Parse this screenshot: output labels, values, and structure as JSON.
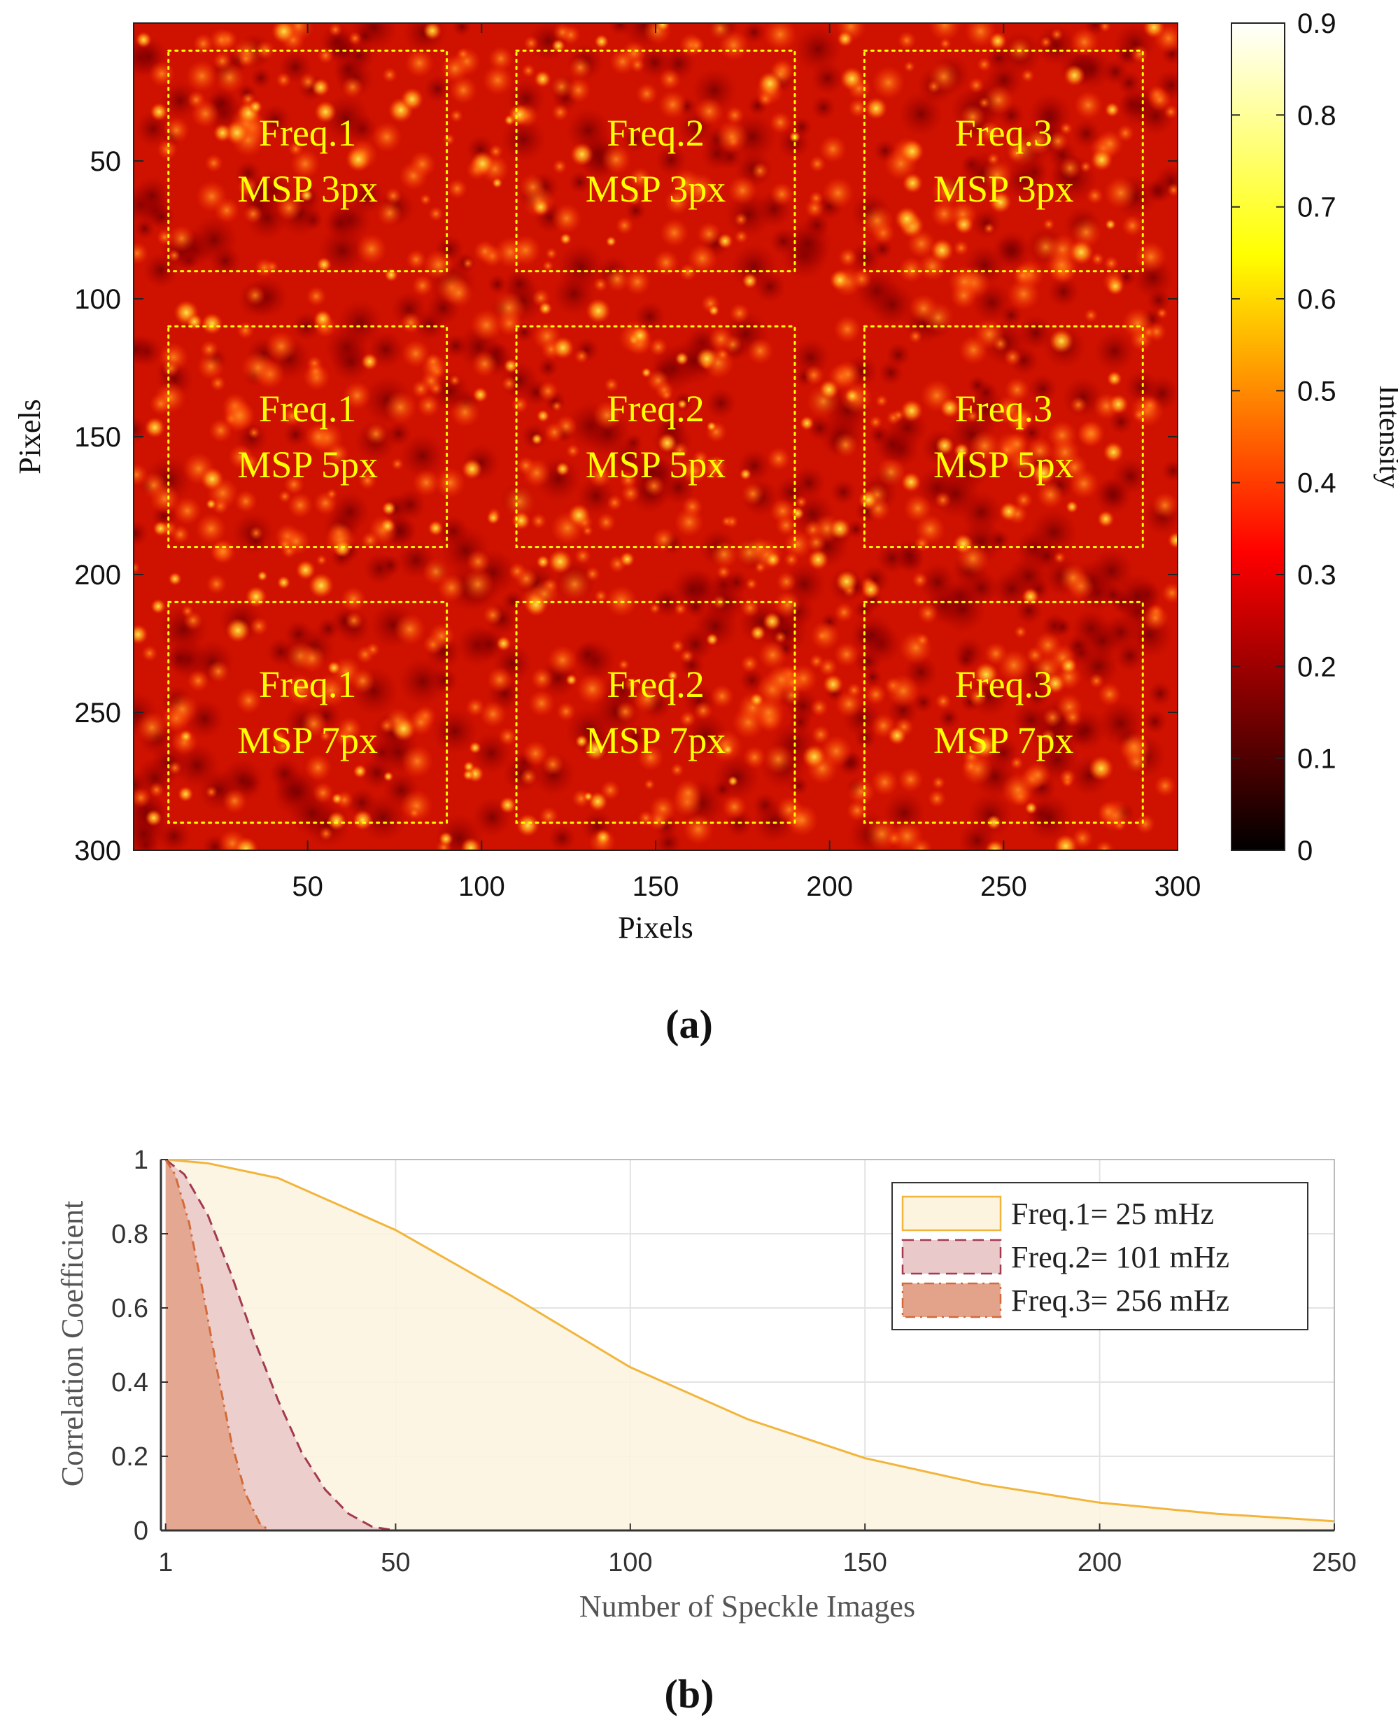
{
  "chart_data": [
    {
      "type": "heatmap",
      "panel_label": "(a)",
      "xlabel": "Pixels",
      "ylabel": "Pixels",
      "xlim": [
        0,
        300
      ],
      "ylim": [
        0,
        300
      ],
      "y_reversed": true,
      "xticks": [
        50,
        100,
        150,
        200,
        250,
        300
      ],
      "yticks": [
        50,
        100,
        150,
        200,
        250,
        300
      ],
      "colorbar": {
        "label": "Intensity",
        "range": [
          0,
          0.9
        ],
        "ticks": [
          "0",
          "0.1",
          "0.2",
          "0.3",
          "0.4",
          "0.5",
          "0.6",
          "0.7",
          "0.8",
          "0.9"
        ],
        "colormap": "hot"
      },
      "regions": [
        {
          "frequency": "Freq.1",
          "msp": "MSP 3px",
          "x_range": [
            10,
            90
          ],
          "y_range": [
            10,
            90
          ]
        },
        {
          "frequency": "Freq.2",
          "msp": "MSP 3px",
          "x_range": [
            110,
            190
          ],
          "y_range": [
            10,
            90
          ]
        },
        {
          "frequency": "Freq.3",
          "msp": "MSP 3px",
          "x_range": [
            210,
            290
          ],
          "y_range": [
            10,
            90
          ]
        },
        {
          "frequency": "Freq.1",
          "msp": "MSP 5px",
          "x_range": [
            10,
            90
          ],
          "y_range": [
            110,
            190
          ]
        },
        {
          "frequency": "Freq.2",
          "msp": "MSP 5px",
          "x_range": [
            110,
            190
          ],
          "y_range": [
            110,
            190
          ]
        },
        {
          "frequency": "Freq.3",
          "msp": "MSP 5px",
          "x_range": [
            210,
            290
          ],
          "y_range": [
            110,
            190
          ]
        },
        {
          "frequency": "Freq.1",
          "msp": "MSP 7px",
          "x_range": [
            10,
            90
          ],
          "y_range": [
            210,
            290
          ]
        },
        {
          "frequency": "Freq.2",
          "msp": "MSP 7px",
          "x_range": [
            110,
            190
          ],
          "y_range": [
            210,
            290
          ]
        },
        {
          "frequency": "Freq.3",
          "msp": "MSP 7px",
          "x_range": [
            210,
            290
          ],
          "y_range": [
            210,
            290
          ]
        }
      ],
      "region_outline_color": "#ffff00",
      "label_color": "#ffff00"
    },
    {
      "type": "area",
      "panel_label": "(b)",
      "xlabel": "Number of Speckle Images",
      "ylabel": "Correlation Coefficient",
      "xlim": [
        0,
        250
      ],
      "ylim": [
        0,
        1
      ],
      "xticks": [
        1,
        50,
        100,
        150,
        200,
        250
      ],
      "yticks": [
        0,
        0.2,
        0.4,
        0.6,
        0.8,
        1
      ],
      "ytick_labels": [
        "0",
        "0.2",
        "0.4",
        "0.6",
        "0.8",
        "1"
      ],
      "grid": true,
      "legend_position": "top-right",
      "series": [
        {
          "name": "Freq.1= 25 mHz",
          "line_style": "solid",
          "line_color": "#f2b53c",
          "fill_color": "#fdf4df",
          "x": [
            1,
            10,
            25,
            50,
            75,
            100,
            125,
            150,
            175,
            200,
            225,
            250
          ],
          "y": [
            1.0,
            0.99,
            0.95,
            0.81,
            0.63,
            0.44,
            0.3,
            0.195,
            0.125,
            0.075,
            0.045,
            0.025
          ]
        },
        {
          "name": "Freq.2= 101 mHz",
          "line_style": "dashed",
          "line_color": "#a33a4e",
          "fill_color": "#e9c9c9",
          "x": [
            1,
            5,
            10,
            15,
            20,
            25,
            30,
            35,
            40,
            45,
            50,
            250
          ],
          "y": [
            1.0,
            0.96,
            0.85,
            0.69,
            0.51,
            0.35,
            0.21,
            0.11,
            0.045,
            0.01,
            0.0,
            0.0
          ]
        },
        {
          "name": "Freq.3= 256 mHz",
          "line_style": "dash-dot",
          "line_color": "#d46a38",
          "fill_color": "#e3a38a",
          "x": [
            1,
            3,
            6,
            9,
            12,
            15,
            18,
            21,
            23,
            250
          ],
          "y": [
            1.0,
            0.96,
            0.83,
            0.64,
            0.43,
            0.24,
            0.1,
            0.02,
            0.0,
            0.0
          ]
        }
      ]
    }
  ]
}
